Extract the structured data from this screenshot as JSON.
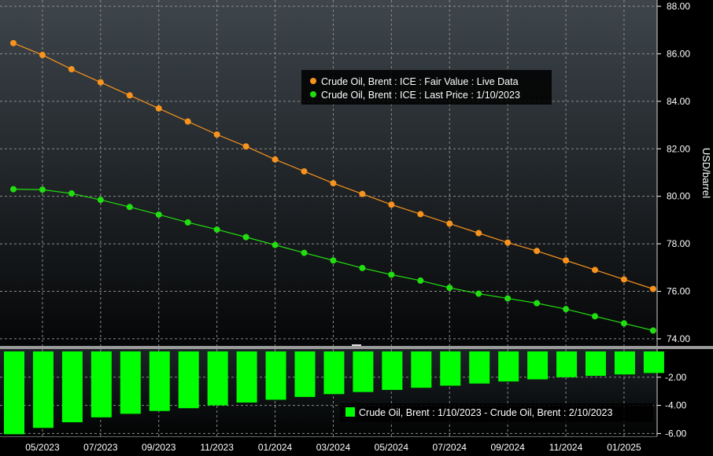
{
  "chart_data": [
    {
      "type": "line",
      "ylabel": "USD/barrel",
      "ylim": [
        73.7,
        88.0
      ],
      "yticks": [
        74,
        76,
        78,
        80,
        82,
        84,
        86,
        88
      ],
      "ytick_labels": [
        "74.00",
        "76.00",
        "78.00",
        "80.00",
        "82.00",
        "84.00",
        "86.00",
        "88.00"
      ],
      "grid": true,
      "legend_position": "top-center",
      "x": [
        "04/2023",
        "05/2023",
        "06/2023",
        "07/2023",
        "08/2023",
        "09/2023",
        "10/2023",
        "11/2023",
        "12/2023",
        "01/2024",
        "02/2024",
        "03/2024",
        "04/2024",
        "05/2024",
        "06/2024",
        "07/2024",
        "08/2024",
        "09/2024",
        "10/2024",
        "11/2024",
        "12/2024",
        "01/2025",
        "02/2025"
      ],
      "series": [
        {
          "name": "Crude Oil, Brent : ICE : Fair Value : Live Data",
          "color": "#f7931e",
          "values": [
            86.45,
            85.95,
            85.35,
            84.8,
            84.25,
            83.7,
            83.15,
            82.6,
            82.1,
            81.55,
            81.05,
            80.55,
            80.1,
            79.65,
            79.25,
            78.85,
            78.45,
            78.05,
            77.7,
            77.3,
            76.9,
            76.5,
            76.1
          ]
        },
        {
          "name": "Crude Oil, Brent : ICE : Last Price : 1/10/2023",
          "color": "#22dd11",
          "values": [
            80.3,
            80.28,
            80.12,
            79.85,
            79.55,
            79.23,
            78.9,
            78.6,
            78.28,
            77.95,
            77.62,
            77.3,
            76.98,
            76.7,
            76.45,
            76.15,
            75.9,
            75.7,
            75.5,
            75.25,
            74.95,
            74.65,
            74.35
          ]
        }
      ]
    },
    {
      "type": "bar",
      "ylim": [
        -6.2,
        0
      ],
      "yticks": [
        -2,
        -4,
        -6
      ],
      "ytick_labels": [
        "-2.00",
        "-4.00",
        "-6.00"
      ],
      "grid": true,
      "legend_position": "bottom-right",
      "categories": [
        "04/2023",
        "05/2023",
        "06/2023",
        "07/2023",
        "08/2023",
        "09/2023",
        "10/2023",
        "11/2023",
        "12/2023",
        "01/2024",
        "02/2024",
        "03/2024",
        "04/2024",
        "05/2024",
        "06/2024",
        "07/2024",
        "08/2024",
        "09/2024",
        "10/2024",
        "11/2024",
        "12/2024",
        "01/2025",
        "02/2025"
      ],
      "series": [
        {
          "name": "Crude Oil, Brent : 1/10/2023 - Crude Oil, Brent : 2/10/2023",
          "color": "#00ff00",
          "values": [
            -6.05,
            -5.6,
            -5.2,
            -4.85,
            -4.6,
            -4.4,
            -4.2,
            -4.0,
            -3.8,
            -3.6,
            -3.4,
            -3.2,
            -3.05,
            -2.9,
            -2.75,
            -2.6,
            -2.45,
            -2.3,
            -2.15,
            -2.0,
            -1.9,
            -1.8,
            -1.7
          ]
        }
      ]
    }
  ],
  "x_axis": {
    "tick_labels": [
      "05/2023",
      "07/2023",
      "09/2023",
      "11/2023",
      "01/2024",
      "03/2024",
      "05/2024",
      "07/2024",
      "09/2024",
      "11/2024",
      "01/2025"
    ]
  },
  "colors": {
    "background": "#000000",
    "grid": "#8a8a8a",
    "text": "#ffffff",
    "legend_box": "#000000"
  }
}
